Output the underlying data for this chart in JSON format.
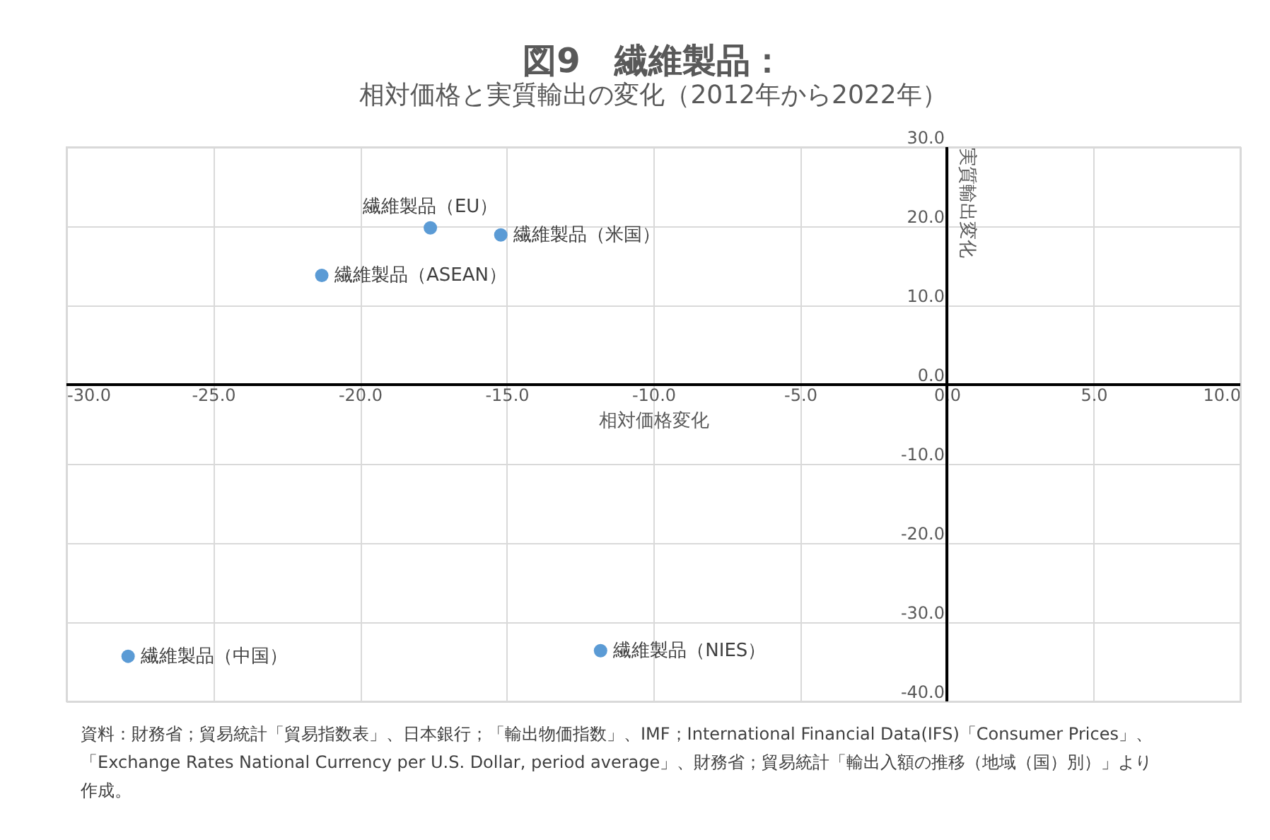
{
  "chart_data": {
    "type": "scatter",
    "title": "図9　繊維製品：",
    "subtitle": "相対価格と実質輸出の変化（2012年から2022年）",
    "xlabel": "相対価格変化",
    "ylabel": "実質輸出変化",
    "series": [
      {
        "color": "#5b9bd5",
        "x": [
          -17.6,
          -15.2,
          -21.3,
          -27.9,
          -11.8
        ],
        "values": [
          19.8,
          18.9,
          13.8,
          -34.3,
          -33.6
        ]
      }
    ],
    "annotations": [
      {
        "text": "繊維製品（EU）",
        "x": -17.6,
        "y": 19.8
      },
      {
        "text": "繊維製品（米国）",
        "x": -15.2,
        "y": 18.9
      },
      {
        "text": "繊維製品（ASEAN）",
        "x": -21.3,
        "y": 13.8
      },
      {
        "text": "繊維製品（中国）",
        "x": -27.9,
        "y": -34.3
      },
      {
        "text": "繊維製品（NIES）",
        "x": -11.8,
        "y": -33.6
      },
      "資料：財務省；貿易統計「貿易指数表」、日本銀行；「輸出物価指数」、IMF；International Financial Data(IFS)「Consumer Prices」、「Exchange Rates National Currency per U.S. Dollar, period average」、財務省；貿易統計「輸出入額の推移（地域（国）別）」より作成。"
    ],
    "xlim": [
      -30,
      10
    ],
    "xticks": [
      {
        "value": -30,
        "label": "-30.0"
      },
      {
        "value": -25,
        "label": "-25.0"
      },
      {
        "value": -20,
        "label": "-20.0"
      },
      {
        "value": -15,
        "label": "-15.0"
      },
      {
        "value": -10,
        "label": "-10.0"
      },
      {
        "value": -5,
        "label": "-5.0"
      },
      {
        "value": 0,
        "label": "0.0"
      },
      {
        "value": 5,
        "label": "5.0"
      },
      {
        "value": 10,
        "label": "10.0"
      }
    ],
    "ylim": [
      -40,
      30
    ],
    "yticks": [
      {
        "value": -40,
        "label": "-40.0"
      },
      {
        "value": -30,
        "label": "-30.0"
      },
      {
        "value": -20,
        "label": "-20.0"
      },
      {
        "value": -10,
        "label": "-10.0"
      },
      {
        "value": 0,
        "label": "0.0"
      },
      {
        "value": 10,
        "label": "10.0"
      },
      {
        "value": 20,
        "label": "20.0"
      },
      {
        "value": 30,
        "label": "30.0"
      }
    ],
    "grid": true,
    "marker": "circle",
    "legend": false
  }
}
